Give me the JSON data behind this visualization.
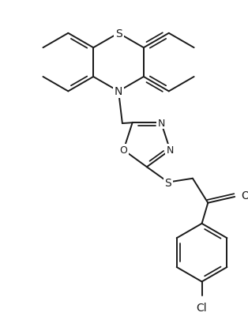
{
  "bg_color": "#ffffff",
  "line_color": "#1a1a1a",
  "lw": 1.4,
  "fig_width": 3.14,
  "fig_height": 4.06,
  "dpi": 100,
  "xlim": [
    0,
    314
  ],
  "ylim": [
    0,
    406
  ]
}
